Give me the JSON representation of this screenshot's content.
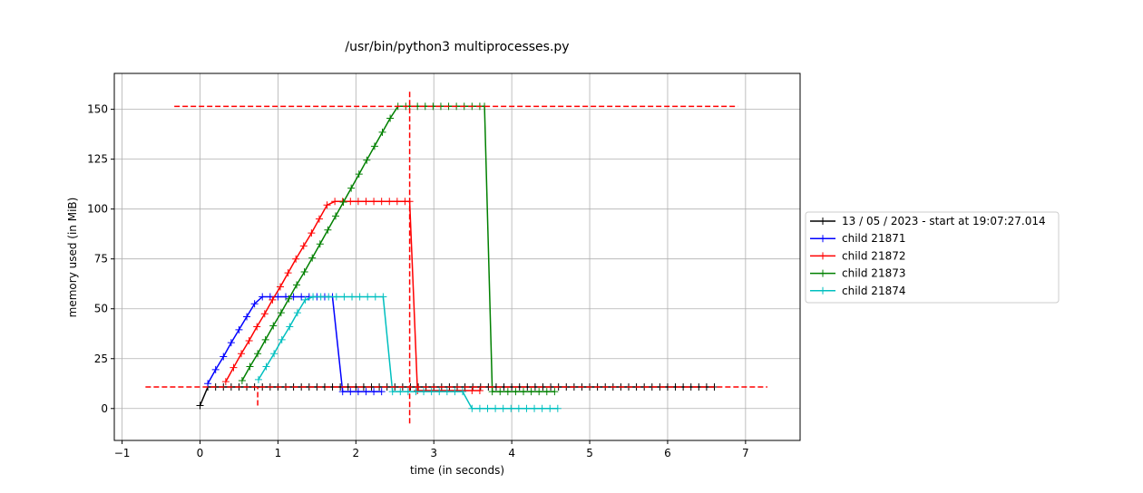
{
  "chart_data": {
    "type": "line",
    "title": "/usr/bin/python3 multiprocesses.py",
    "xlabel": "time (in seconds)",
    "ylabel": "memory used (in MiB)",
    "xlim": [
      -1.1,
      7.7
    ],
    "ylim": [
      -16,
      168
    ],
    "xticks": [
      -1,
      0,
      1,
      2,
      3,
      4,
      5,
      6,
      7
    ],
    "yticks": [
      0,
      25,
      50,
      75,
      100,
      125,
      150
    ],
    "grid": true,
    "legend_position": "center-right",
    "series": [
      {
        "name": "13 / 05 / 2023 - start at 19:07:27.014",
        "color": "#000000",
        "x": [
          0,
          0.1,
          0.2,
          0.3,
          0.4,
          0.5,
          0.6,
          0.7,
          0.8,
          0.9,
          1.0,
          1.1,
          1.2,
          1.3,
          1.4,
          1.5,
          1.6,
          1.7,
          1.8,
          1.9,
          2.0,
          2.1,
          2.2,
          2.3,
          2.4,
          2.5,
          2.6,
          2.7,
          2.8,
          2.9,
          3.0,
          3.1,
          3.2,
          3.3,
          3.4,
          3.5,
          3.6,
          3.7,
          3.8,
          3.9,
          4.0,
          4.1,
          4.2,
          4.3,
          4.4,
          4.5,
          4.6,
          4.7,
          4.8,
          4.9,
          5.0,
          5.1,
          5.2,
          5.3,
          5.4,
          5.5,
          5.6,
          5.7,
          5.8,
          5.9,
          6.0,
          6.1,
          6.2,
          6.3,
          6.4,
          6.5,
          6.6
        ],
        "y": [
          1.5,
          10.8,
          10.8,
          10.8,
          10.8,
          10.8,
          10.8,
          10.8,
          10.8,
          10.8,
          10.8,
          10.8,
          10.8,
          10.8,
          10.8,
          10.8,
          10.8,
          10.8,
          10.8,
          10.8,
          10.8,
          10.8,
          10.8,
          10.8,
          10.8,
          10.8,
          10.8,
          10.8,
          10.8,
          10.8,
          10.8,
          10.8,
          10.8,
          10.8,
          10.8,
          10.8,
          10.8,
          10.8,
          10.8,
          10.8,
          10.8,
          10.8,
          10.8,
          10.8,
          10.8,
          10.8,
          10.8,
          10.8,
          10.8,
          10.8,
          10.8,
          10.8,
          10.8,
          10.8,
          10.8,
          10.8,
          10.8,
          10.8,
          10.8,
          10.8,
          10.8,
          10.8,
          10.8,
          10.8,
          10.8,
          10.8,
          10.8
        ]
      },
      {
        "name": "child 21871",
        "color": "#0000ff",
        "x": [
          0.1,
          0.2,
          0.3,
          0.4,
          0.5,
          0.6,
          0.7,
          0.8,
          0.9,
          1.0,
          1.1,
          1.2,
          1.3,
          1.4,
          1.5,
          1.6,
          1.7,
          1.83,
          1.93,
          2.03,
          2.13,
          2.23,
          2.33
        ],
        "y": [
          12.5,
          19.5,
          26,
          33,
          39.5,
          46,
          52.5,
          56,
          56,
          56,
          56,
          56,
          56,
          56,
          56,
          56,
          56,
          8.5,
          8.5,
          8.5,
          8.5,
          8.5,
          8.5
        ]
      },
      {
        "name": "child 21872",
        "color": "#ff0000",
        "x": [
          0.33,
          0.43,
          0.53,
          0.63,
          0.73,
          0.83,
          0.93,
          1.03,
          1.13,
          1.23,
          1.33,
          1.43,
          1.53,
          1.63,
          1.73,
          1.83,
          1.93,
          2.03,
          2.13,
          2.23,
          2.33,
          2.43,
          2.53,
          2.63,
          2.69,
          2.79,
          3.49,
          3.59
        ],
        "y": [
          13.5,
          20.5,
          27.5,
          34,
          41,
          47.5,
          54.5,
          61,
          68,
          75,
          81.5,
          88,
          95,
          102,
          103.8,
          103.8,
          103.8,
          103.8,
          103.8,
          103.8,
          103.8,
          103.8,
          103.8,
          103.8,
          103.8,
          9,
          9,
          9
        ]
      },
      {
        "name": "child 21873",
        "color": "#008000",
        "x": [
          0.54,
          0.64,
          0.74,
          0.84,
          0.94,
          1.04,
          1.14,
          1.24,
          1.34,
          1.44,
          1.54,
          1.64,
          1.74,
          1.84,
          1.94,
          2.04,
          2.14,
          2.24,
          2.34,
          2.44,
          2.54,
          2.64,
          2.69,
          2.79,
          2.89,
          2.99,
          3.09,
          3.19,
          3.29,
          3.39,
          3.49,
          3.59,
          3.65,
          3.75,
          3.85,
          3.95,
          4.05,
          4.15,
          4.25,
          4.35,
          4.45,
          4.55
        ],
        "y": [
          14,
          21,
          27.5,
          34.5,
          41.5,
          48,
          55,
          62,
          68.5,
          75.5,
          82.5,
          89.5,
          96.5,
          103.5,
          110.5,
          117.5,
          124.5,
          131.5,
          138.5,
          145.5,
          151.5,
          151.5,
          151.5,
          151.5,
          151.5,
          151.5,
          151.5,
          151.5,
          151.5,
          151.5,
          151.5,
          151.5,
          151.5,
          8.5,
          8.5,
          8.5,
          8.5,
          8.5,
          8.5,
          8.5,
          8.5,
          8.5
        ]
      },
      {
        "name": "child 21874",
        "color": "#00bfbf",
        "x": [
          0.75,
          0.85,
          0.95,
          1.05,
          1.15,
          1.25,
          1.35,
          1.45,
          1.55,
          1.65,
          1.75,
          1.85,
          1.95,
          2.05,
          2.15,
          2.25,
          2.35,
          2.47,
          2.57,
          2.67,
          2.77,
          2.87,
          2.97,
          3.07,
          3.17,
          3.27,
          3.37,
          3.49,
          3.59,
          3.69,
          3.79,
          3.89,
          3.99,
          4.09,
          4.19,
          4.29,
          4.39,
          4.49,
          4.59
        ],
        "y": [
          14.5,
          21,
          27.5,
          34.5,
          41,
          48,
          54.5,
          56,
          56,
          56,
          56,
          56,
          56,
          56,
          56,
          56,
          56,
          8.5,
          8.5,
          8.5,
          8.5,
          8.5,
          8.5,
          8.5,
          8.5,
          8.5,
          8.5,
          0,
          0,
          0,
          0,
          0,
          0,
          0,
          0,
          0,
          0,
          0,
          0
        ]
      }
    ],
    "reference_lines": {
      "color": "#ff0000",
      "horizontal": [
        {
          "y": 151.5,
          "x_from": -0.33,
          "x_to": 6.9
        },
        {
          "y": 10.8,
          "x_from": -0.7,
          "x_to": 7.28
        }
      ],
      "vertical": [
        {
          "x": 0.74,
          "y_from": 1.5,
          "y_to": 10.8
        },
        {
          "x": 2.69,
          "y_from": -7.5,
          "y_to": 159
        }
      ]
    }
  }
}
